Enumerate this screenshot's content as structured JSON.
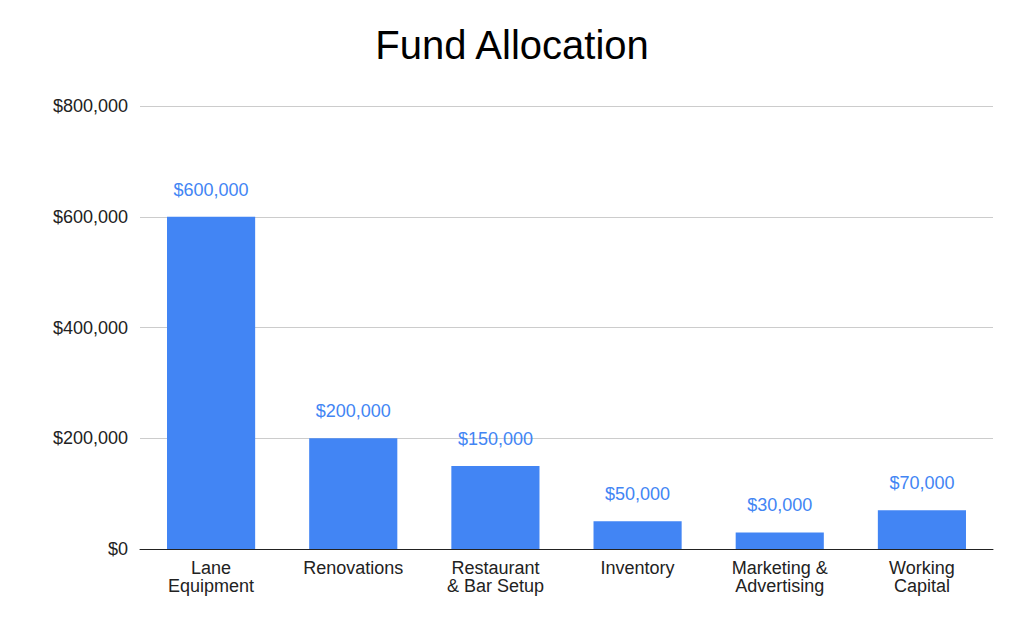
{
  "chart_data": {
    "type": "bar",
    "title": "Fund Allocation",
    "categories": [
      "Lane\nEquipment",
      "Renovations",
      "Restaurant\n& Bar Setup",
      "Inventory",
      "Marketing &\nAdvertising",
      "Working\nCapital"
    ],
    "values": [
      600000,
      200000,
      150000,
      50000,
      30000,
      70000
    ],
    "value_labels": [
      "$600,000",
      "$200,000",
      "$150,000",
      "$50,000",
      "$30,000",
      "$70,000"
    ],
    "data_labels": true,
    "color": "#4285f4",
    "ylim": [
      0,
      800000
    ],
    "yticks": [
      {
        "value": 0,
        "label": "$0"
      },
      {
        "value": 200000,
        "label": "$200,000"
      },
      {
        "value": 400000,
        "label": "$400,000"
      },
      {
        "value": 600000,
        "label": "$600,000"
      },
      {
        "value": 800000,
        "label": "$800,000"
      }
    ],
    "grid": true
  }
}
